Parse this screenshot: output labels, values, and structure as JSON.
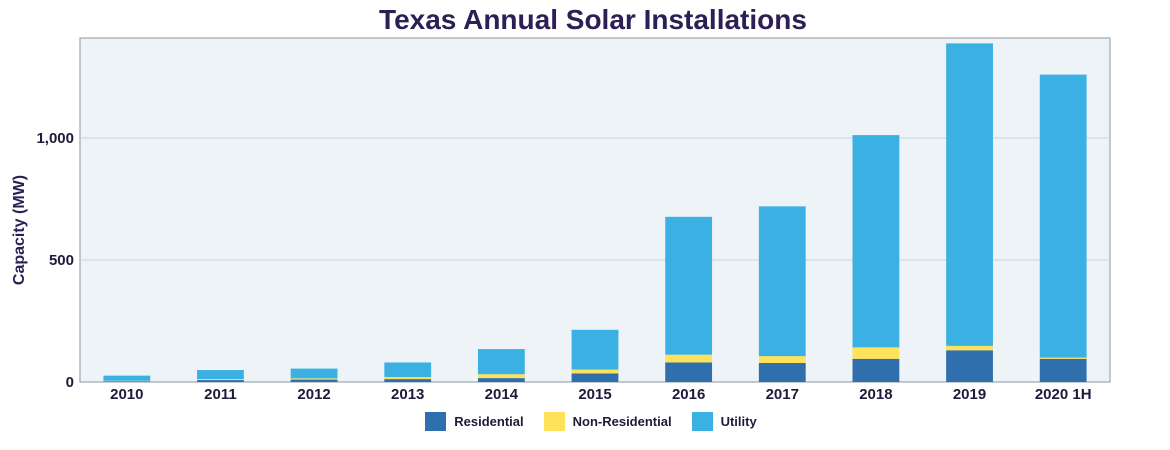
{
  "colors": {
    "residential": "#2f6fae",
    "non_residential": "#fde25a",
    "utility": "#3bb1e3",
    "plot_bg": "#eef3f7",
    "grid": "#c9d3da",
    "frame": "#8a96a3"
  },
  "chart_data": {
    "type": "bar",
    "stacked": true,
    "title": "Texas Annual Solar Installations",
    "xlabel": "",
    "ylabel": "Capacity (MW)",
    "ylim": [
      0,
      1410
    ],
    "yticks": [
      0,
      500,
      1000
    ],
    "ytick_labels": [
      "0",
      "500",
      "1,000"
    ],
    "grid": true,
    "legend_position": "bottom",
    "categories": [
      "2010",
      "2011",
      "2012",
      "2013",
      "2014",
      "2015",
      "2016",
      "2017",
      "2018",
      "2019",
      "2020 1H"
    ],
    "series": [
      {
        "name": "Residential",
        "color": "#2f6fae",
        "values": [
          3,
          8,
          10,
          12,
          16,
          35,
          80,
          78,
          95,
          130,
          95
        ]
      },
      {
        "name": "Non-Residential",
        "color": "#fde25a",
        "values": [
          2,
          4,
          5,
          8,
          16,
          16,
          32,
          28,
          47,
          18,
          5
        ]
      },
      {
        "name": "Utility",
        "color": "#3bb1e3",
        "values": [
          21,
          37,
          40,
          60,
          103,
          163,
          565,
          614,
          870,
          1240,
          1160
        ]
      }
    ]
  }
}
